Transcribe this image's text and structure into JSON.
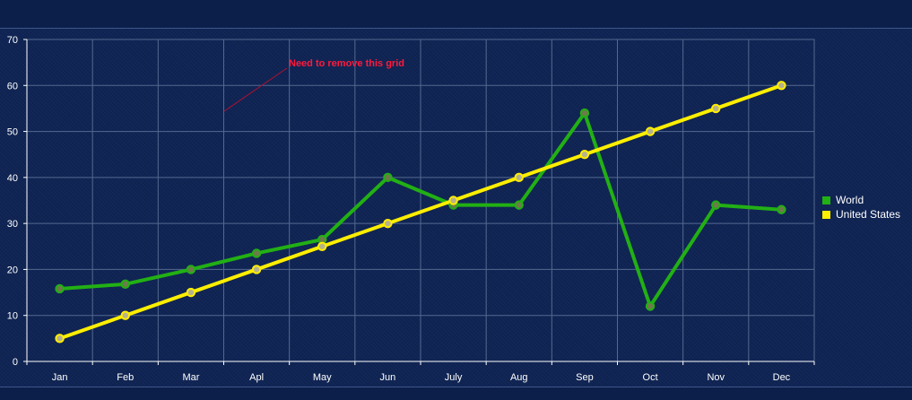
{
  "chart_data": {
    "type": "line",
    "categories": [
      "Jan",
      "Feb",
      "Mar",
      "Apl",
      "May",
      "Jun",
      "July",
      "Aug",
      "Sep",
      "Oct",
      "Nov",
      "Dec"
    ],
    "series": [
      {
        "name": "World",
        "color": "#22b014",
        "values": [
          15.8,
          16.8,
          20.0,
          23.5,
          26.5,
          40.0,
          34.0,
          34.0,
          54.0,
          12.0,
          34.0,
          33.0
        ]
      },
      {
        "name": "United States",
        "color": "#ffee00",
        "values": [
          5,
          10,
          15,
          20,
          25,
          30,
          35,
          40,
          45,
          50,
          55,
          60
        ]
      }
    ],
    "ylim": [
      0,
      70
    ],
    "yticks": [
      0,
      10,
      20,
      30,
      40,
      50,
      60,
      70
    ],
    "grid": true,
    "legend_position": "right",
    "annotation": {
      "text": "Need to remove this grid",
      "color": "#ff1a3c"
    }
  }
}
